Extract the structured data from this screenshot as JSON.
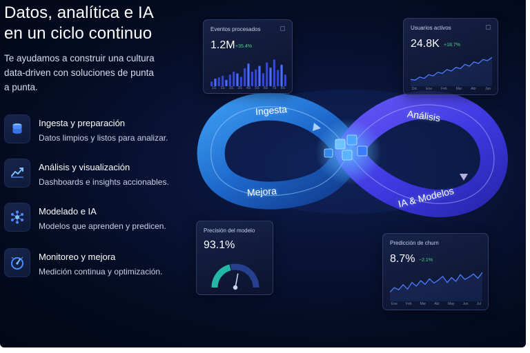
{
  "hero": {
    "title_line1": "Datos, analítica e IA",
    "title_line2": "en un ciclo continuo",
    "subtitle_line1": "Te ayudamos a construir una cultura",
    "subtitle_line2": "data-driven con soluciones de punta",
    "subtitle_line3": "a punta."
  },
  "features": [
    {
      "title": "Ingesta y preparación",
      "desc": "Datos limpios y listos para analizar.",
      "icon": "database-icon"
    },
    {
      "title": "Análisis y visualización",
      "desc": "Dashboards e insights accionables.",
      "icon": "trend-chart-icon"
    },
    {
      "title": "Modelado e IA",
      "desc": "Modelos que aprenden y predicen.",
      "icon": "neural-network-icon"
    },
    {
      "title": "Monitoreo y mejora",
      "desc": "Medición continua y optimización.",
      "icon": "gauge-icon"
    }
  ],
  "cycle": {
    "stage_1": "Ingesta",
    "stage_2": "Análisis",
    "stage_3": "IA & Modelos",
    "stage_4": "Mejora"
  },
  "cards": {
    "events": {
      "label": "Eventos procesados",
      "value": "1.2M",
      "delta": "+35.4%",
      "ticks": [
        "1S",
        "1S",
        "2S",
        "3S",
        "4S",
        "5S",
        "6S",
        "7S",
        "8S"
      ],
      "bars": [
        0.16,
        0.26,
        0.3,
        0.36,
        0.22,
        0.4,
        0.5,
        0.44,
        0.32,
        0.62,
        0.78,
        0.5,
        0.58,
        0.7,
        0.45,
        0.82,
        0.64,
        0.92,
        0.56,
        0.74,
        0.4
      ]
    },
    "users": {
      "label": "Usuarios activos",
      "value": "24.8K",
      "delta": "+18.7%",
      "ticks": [
        "Dic",
        "Ene",
        "Feb",
        "Mar",
        "Abr",
        "Jun"
      ],
      "series": [
        0.22,
        0.2,
        0.3,
        0.26,
        0.38,
        0.34,
        0.46,
        0.42,
        0.55,
        0.5,
        0.62,
        0.58,
        0.72,
        0.66,
        0.8,
        0.75,
        0.88,
        0.84,
        0.95
      ]
    },
    "precision": {
      "label": "Precisión del modelo",
      "value": "93.1%",
      "gauge": 0.931
    },
    "churn": {
      "label": "Predicción de churn",
      "value": "8.7%",
      "delta": "−2.1%",
      "ticks": [
        "Ene",
        "Feb",
        "Mar",
        "Abr",
        "May",
        "Jun",
        "Jul"
      ],
      "series": [
        0.3,
        0.45,
        0.38,
        0.55,
        0.4,
        0.62,
        0.5,
        0.68,
        0.56,
        0.74,
        0.6,
        0.7,
        0.82,
        0.62,
        0.78,
        0.66,
        0.88,
        0.72,
        0.8,
        0.9,
        0.76,
        0.95
      ]
    }
  },
  "colors": {
    "accent": "#2f6bff",
    "positive": "#4fd08b",
    "gauge_teal": "#22b7a6",
    "gauge_navy": "#26408f"
  }
}
